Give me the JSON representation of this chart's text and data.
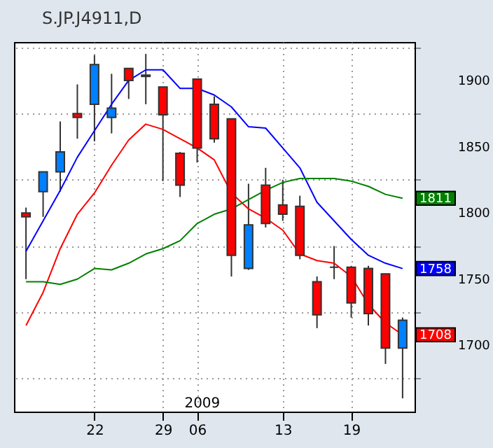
{
  "chart_data": {
    "type": "candlestick",
    "title": "S.JP.J4911,D",
    "categories": [
      null,
      null,
      null,
      null,
      "22",
      null,
      null,
      null,
      "29",
      null,
      "06",
      null,
      null,
      null,
      null,
      "13",
      null,
      null,
      null,
      "19",
      null,
      null,
      null
    ],
    "ohlc": [
      [
        1800,
        1804,
        1750,
        1797
      ],
      [
        1816,
        1831,
        1797,
        1831
      ],
      [
        1831,
        1869,
        1816,
        1846
      ],
      [
        1875,
        1897,
        1856,
        1872
      ],
      [
        1882,
        1919,
        1854,
        1912
      ],
      [
        1872,
        1905,
        1860,
        1879
      ],
      [
        1909,
        1909,
        1886,
        1900
      ],
      [
        1903,
        1920,
        1882,
        1904
      ],
      [
        1895,
        1895,
        1824,
        1874
      ],
      [
        1845,
        1846,
        1812,
        1821
      ],
      [
        1901,
        1901,
        1838,
        1849
      ],
      [
        1882,
        1888,
        1853,
        1856
      ],
      [
        1871,
        1871,
        1752,
        1768
      ],
      [
        1758,
        1822,
        1757,
        1791
      ],
      [
        1821,
        1834,
        1789,
        1792
      ],
      [
        1806,
        1825,
        1794,
        1799
      ],
      [
        1805,
        1813,
        1765,
        1768
      ],
      [
        1748,
        1752,
        1713,
        1723
      ],
      [
        1759,
        1775,
        1750,
        1759
      ],
      [
        1759,
        1760,
        1721,
        1732
      ],
      [
        1758,
        1760,
        1715,
        1724
      ],
      [
        1754,
        1754,
        1686,
        1698
      ],
      [
        1698,
        1721,
        1660,
        1719
      ]
    ],
    "colors": [
      "#ff0000",
      "#0080ff",
      "#0080ff",
      "#ff0000",
      "#0080ff",
      "#0080ff",
      "#ff0000",
      "#0080ff",
      "#ff0000",
      "#ff0000",
      "#ff0000",
      "#ff0000",
      "#ff0000",
      "#0080ff",
      "#ff0000",
      "#ff0000",
      "#ff0000",
      "#ff0000",
      "#333333",
      "#ff0000",
      "#ff0000",
      "#ff0000",
      "#0080ff"
    ],
    "series": [
      {
        "type": "line",
        "color": "#0000ff",
        "values": [
          1771,
          1794,
          1817,
          1842,
          1862,
          1882,
          1900,
          1908,
          1908,
          1894,
          1894,
          1889,
          1880,
          1865,
          1864,
          1849,
          1834,
          1808,
          1794,
          1780,
          1768,
          1762,
          1758
        ],
        "value_labels": [
          null,
          null,
          null,
          null,
          null,
          null,
          null,
          null,
          null,
          null,
          null,
          null,
          null,
          null,
          null,
          null,
          null,
          null,
          null,
          null,
          null,
          null,
          "1758"
        ]
      },
      {
        "type": "line",
        "color": "#ff0000",
        "values": [
          1715,
          1740,
          1773,
          1799,
          1815,
          1836,
          1855,
          1867,
          1863,
          1856,
          1849,
          1840,
          1815,
          1803,
          1796,
          1787,
          1769,
          1764,
          1762,
          1752,
          1731,
          1717,
          1708
        ],
        "value_labels": [
          null,
          null,
          null,
          null,
          null,
          null,
          null,
          null,
          null,
          null,
          null,
          null,
          null,
          null,
          null,
          null,
          null,
          null,
          null,
          null,
          null,
          null,
          "1708"
        ]
      },
      {
        "type": "line",
        "color": "#008000",
        "values": [
          1748,
          1748,
          1746,
          1750,
          1758,
          1757,
          1762,
          1769,
          1773,
          1779,
          1792,
          1799,
          1803,
          1810,
          1817,
          1823,
          1826,
          1826,
          1826,
          1824,
          1820,
          1814,
          1811
        ],
        "value_labels": [
          null,
          null,
          null,
          null,
          null,
          null,
          null,
          null,
          null,
          null,
          null,
          null,
          null,
          null,
          null,
          null,
          null,
          null,
          null,
          null,
          null,
          null,
          "1811"
        ]
      }
    ],
    "ylim": [
      1650,
      1929
    ],
    "yticks": [
      {
        "value": 1675,
        "label": null
      },
      1700,
      {
        "value": 1725,
        "label": null
      },
      1750,
      {
        "value": 1775,
        "label": null
      },
      1800,
      {
        "value": 1825,
        "label": null
      },
      1850,
      {
        "value": 1875,
        "label": null
      },
      1900,
      {
        "value": 1925,
        "label": null
      }
    ],
    "grid": true,
    "line_style": "solid",
    "annotations": [
      "2009"
    ]
  }
}
